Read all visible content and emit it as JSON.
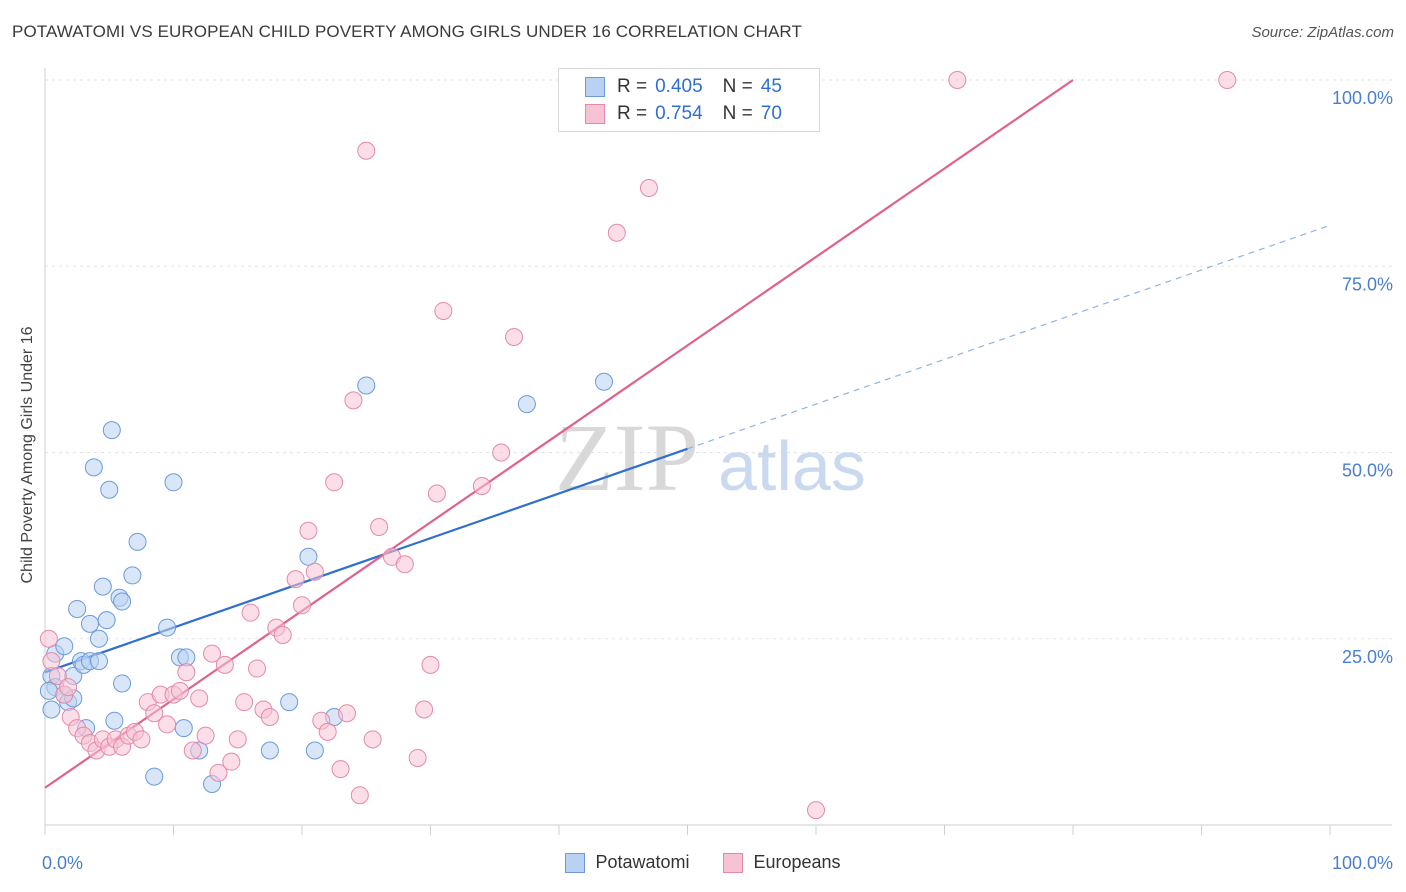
{
  "title": "POTAWATOMI VS EUROPEAN CHILD POVERTY AMONG GIRLS UNDER 16 CORRELATION CHART",
  "source": "Source: ZipAtlas.com",
  "watermark": {
    "part1": "ZIP",
    "part2": "atlas"
  },
  "colors": {
    "potawatomi_fill": "#b9d2f3",
    "potawatomi_stroke": "#6a9bdc",
    "potawatomi_line": "#2f6fd0",
    "europeans_fill": "#f7c3d4",
    "europeans_stroke": "#e48aa8",
    "europeans_line": "#e0628c"
  },
  "legend": {
    "rows": [
      {
        "r_label": "R =",
        "r_value": "0.405",
        "n_label": "N =",
        "n_value": "45"
      },
      {
        "r_label": "R =",
        "r_value": "0.754",
        "n_label": "N =",
        "n_value": "70"
      }
    ]
  },
  "chart_data": {
    "type": "scatter",
    "title": "POTAWATOMI VS EUROPEAN CHILD POVERTY AMONG GIRLS UNDER 16 CORRELATION CHART",
    "xlabel": "",
    "ylabel": "Child Poverty Among Girls Under 16",
    "xlim": [
      0,
      100
    ],
    "ylim": [
      0,
      100
    ],
    "x_tick_labels": [
      "0.0%",
      "100.0%"
    ],
    "y_tick_labels": [
      "25.0%",
      "50.0%",
      "75.0%",
      "100.0%"
    ],
    "y_ticks": [
      25,
      50,
      75,
      100
    ],
    "grid": true,
    "legend_position": "bottom-center",
    "series": [
      {
        "name": "Potawatomi",
        "points": [
          [
            0.5,
            20.0
          ],
          [
            0.5,
            15.5
          ],
          [
            0.8,
            18.5
          ],
          [
            0.8,
            23.0
          ],
          [
            1.5,
            24.0
          ],
          [
            1.5,
            17.5
          ],
          [
            1.8,
            16.5
          ],
          [
            2.2,
            17.0
          ],
          [
            2.2,
            20.0
          ],
          [
            2.5,
            29.0
          ],
          [
            2.8,
            22.0
          ],
          [
            3.0,
            21.5
          ],
          [
            3.2,
            13.0
          ],
          [
            3.5,
            22.0
          ],
          [
            3.5,
            27.0
          ],
          [
            3.8,
            48.0
          ],
          [
            4.2,
            22.0
          ],
          [
            4.2,
            25.0
          ],
          [
            4.5,
            32.0
          ],
          [
            4.8,
            27.5
          ],
          [
            5.0,
            45.0
          ],
          [
            5.2,
            53.0
          ],
          [
            5.4,
            14.0
          ],
          [
            5.8,
            30.5
          ],
          [
            6.0,
            30.0
          ],
          [
            6.0,
            19.0
          ],
          [
            6.8,
            33.5
          ],
          [
            7.2,
            38.0
          ],
          [
            8.5,
            6.5
          ],
          [
            9.5,
            26.5
          ],
          [
            10.0,
            46.0
          ],
          [
            10.5,
            22.5
          ],
          [
            10.8,
            13.0
          ],
          [
            11.0,
            22.5
          ],
          [
            12.0,
            10.0
          ],
          [
            13.0,
            5.5
          ],
          [
            17.5,
            10.0
          ],
          [
            19.0,
            16.5
          ],
          [
            20.5,
            36.0
          ],
          [
            21.0,
            10.0
          ],
          [
            22.5,
            14.5
          ],
          [
            25.0,
            59.0
          ],
          [
            37.5,
            56.5
          ],
          [
            43.5,
            59.5
          ],
          [
            0.3,
            18.0
          ]
        ]
      },
      {
        "name": "Europeans",
        "points": [
          [
            0.3,
            25.0
          ],
          [
            0.5,
            22.0
          ],
          [
            1.0,
            20.0
          ],
          [
            1.5,
            17.5
          ],
          [
            1.8,
            18.5
          ],
          [
            2.0,
            14.5
          ],
          [
            2.5,
            13.0
          ],
          [
            3.0,
            12.0
          ],
          [
            3.5,
            11.0
          ],
          [
            4.0,
            10.0
          ],
          [
            4.5,
            11.5
          ],
          [
            5.0,
            10.5
          ],
          [
            5.5,
            11.5
          ],
          [
            6.0,
            10.5
          ],
          [
            6.5,
            12.0
          ],
          [
            7.0,
            12.5
          ],
          [
            7.5,
            11.5
          ],
          [
            8.0,
            16.5
          ],
          [
            8.5,
            15.0
          ],
          [
            9.0,
            17.5
          ],
          [
            9.5,
            13.5
          ],
          [
            10.0,
            17.5
          ],
          [
            10.5,
            18.0
          ],
          [
            11.0,
            20.5
          ],
          [
            11.5,
            10.0
          ],
          [
            12.0,
            17.0
          ],
          [
            12.5,
            12.0
          ],
          [
            13.0,
            23.0
          ],
          [
            13.5,
            7.0
          ],
          [
            14.0,
            21.5
          ],
          [
            14.5,
            8.5
          ],
          [
            15.0,
            11.5
          ],
          [
            15.5,
            16.5
          ],
          [
            16.0,
            28.5
          ],
          [
            16.5,
            21.0
          ],
          [
            17.0,
            15.5
          ],
          [
            17.5,
            14.5
          ],
          [
            18.0,
            26.5
          ],
          [
            18.5,
            25.5
          ],
          [
            19.5,
            33.0
          ],
          [
            20.0,
            29.5
          ],
          [
            20.5,
            39.5
          ],
          [
            21.0,
            34.0
          ],
          [
            21.5,
            14.0
          ],
          [
            22.0,
            12.5
          ],
          [
            22.5,
            46.0
          ],
          [
            23.0,
            7.5
          ],
          [
            23.5,
            15.0
          ],
          [
            24.0,
            57.0
          ],
          [
            24.5,
            4.0
          ],
          [
            25.0,
            90.5
          ],
          [
            25.5,
            11.5
          ],
          [
            26.0,
            40.0
          ],
          [
            27.0,
            36.0
          ],
          [
            28.0,
            35.0
          ],
          [
            29.0,
            9.0
          ],
          [
            29.5,
            15.5
          ],
          [
            30.0,
            21.5
          ],
          [
            30.5,
            44.5
          ],
          [
            31.0,
            69.0
          ],
          [
            34.0,
            45.5
          ],
          [
            35.5,
            50.0
          ],
          [
            36.5,
            65.5
          ],
          [
            44.5,
            79.5
          ],
          [
            47.0,
            85.5
          ],
          [
            53.0,
            100.0
          ],
          [
            60.0,
            2.0
          ],
          [
            71.0,
            100.0
          ],
          [
            92.0,
            100.0
          ],
          [
            54.0,
            100.0
          ]
        ]
      }
    ],
    "trendlines": [
      {
        "series": "Potawatomi",
        "x0": 0,
        "y0": 20.5,
        "x1": 50,
        "y1": 50.5,
        "dashed_extension_to_x": 100,
        "dashed_extension_y": 80.5
      },
      {
        "series": "Europeans",
        "x0": 0,
        "y0": 5.0,
        "x1": 80,
        "y1": 100.0
      }
    ]
  },
  "bottom_legend": [
    "Potawatomi",
    "Europeans"
  ]
}
